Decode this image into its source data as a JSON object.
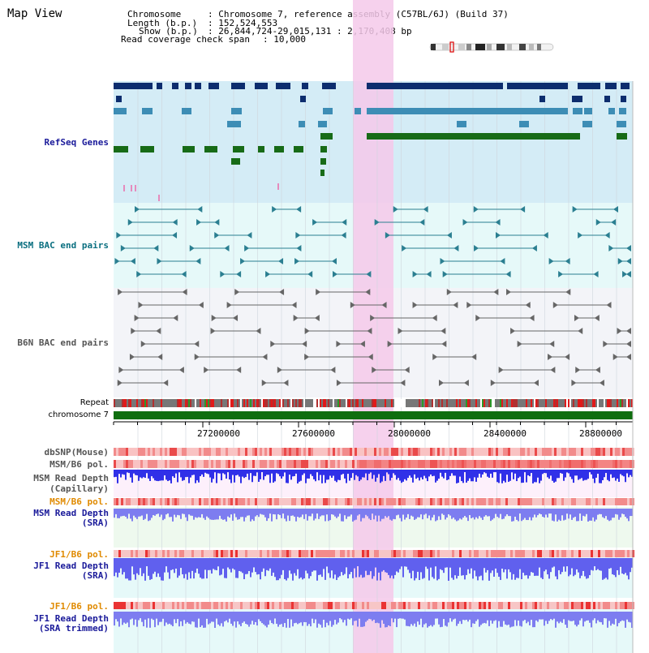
{
  "page": {
    "title": "Map View"
  },
  "info": {
    "chromosome_label": "Chromosome",
    "chromosome_value": ": Chromosome 7, reference assembly (C57BL/6J) (Build 37)",
    "length_label": "Length (b.p.)",
    "length_value": ": 152,524,553",
    "show_label": "Show (b.p.)",
    "show_value": ": 26,844,724-29,015,131 : 2,170,408 bp",
    "coverage_label": "Read coverage check span",
    "coverage_value": ": 10,000"
  },
  "tracks": {
    "refseq": "RefSeq Genes",
    "msm_bac": "MSM BAC end pairs",
    "b6n_bac": "B6N BAC end pairs",
    "repeat": "Repeat",
    "chromosome": "chromosome 7",
    "dbsnp": "dbSNP(Mouse)",
    "msm_pol1": "MSM/B6 pol.",
    "msm_depth_cap_1": "MSM Read Depth",
    "msm_depth_cap_2": "(Capillary)",
    "msm_pol2": "MSM/B6 pol.",
    "msm_depth_sra_1": "MSM Read Depth",
    "msm_depth_sra_2": "(SRA)",
    "jf1_pol1": "JF1/B6 pol.",
    "jf1_depth_sra_1": "JF1 Read Depth",
    "jf1_depth_sra_2": "(SRA)",
    "jf1_pol2": "JF1/B6 pol.",
    "jf1_depth_trim_1": "JF1 Read Depth",
    "jf1_depth_trim_2": "(SRA trimmed)"
  },
  "axis": {
    "ticks": [
      "27200000",
      "27600000",
      "28000000",
      "28400000",
      "28800000"
    ]
  },
  "colors": {
    "refseq_bg": "#d4ecf6",
    "bac_bg": "#e6f9f9",
    "b6n_bg": "#f3f4f8",
    "highlight": "#f4c9ea",
    "chromosome_bar": "#0f6e0f",
    "navy": "#0d2d6e",
    "steel": "#3d8db5",
    "green": "#176b17"
  }
}
